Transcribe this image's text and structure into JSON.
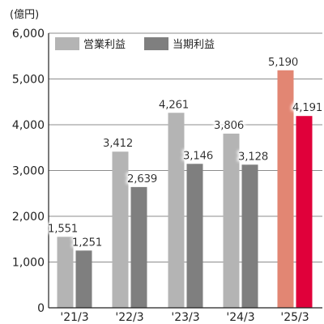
{
  "chart_data": {
    "type": "bar",
    "unit_label": "(億円)",
    "categories": [
      "'21/3",
      "'22/3",
      "'23/3",
      "'24/3",
      "'25/3"
    ],
    "series": [
      {
        "name": "営業利益",
        "values": [
          1551,
          3412,
          4261,
          3806,
          5190
        ],
        "value_labels": [
          "1,551",
          "3,412",
          "4,261",
          "3,806",
          "5,190"
        ],
        "color": "#b4b4b4",
        "highlight_color": "#e28673"
      },
      {
        "name": "当期利益",
        "values": [
          1251,
          2639,
          3146,
          3128,
          4191
        ],
        "value_labels": [
          "1,251",
          "2,639",
          "3,146",
          "3,128",
          "4,191"
        ],
        "color": "#7f7f7f",
        "highlight_color": "#e0003a"
      }
    ],
    "highlight_category_index": 4,
    "ylim": [
      0,
      6000
    ],
    "yticks": [
      0,
      1000,
      2000,
      3000,
      4000,
      5000,
      6000
    ],
    "ytick_labels": [
      "0",
      "1,000",
      "2,000",
      "3,000",
      "4,000",
      "5,000",
      "6,000"
    ],
    "grid": true,
    "legend_position": "top-left",
    "gridline_color": "#666666",
    "axis_color": "#222222"
  }
}
